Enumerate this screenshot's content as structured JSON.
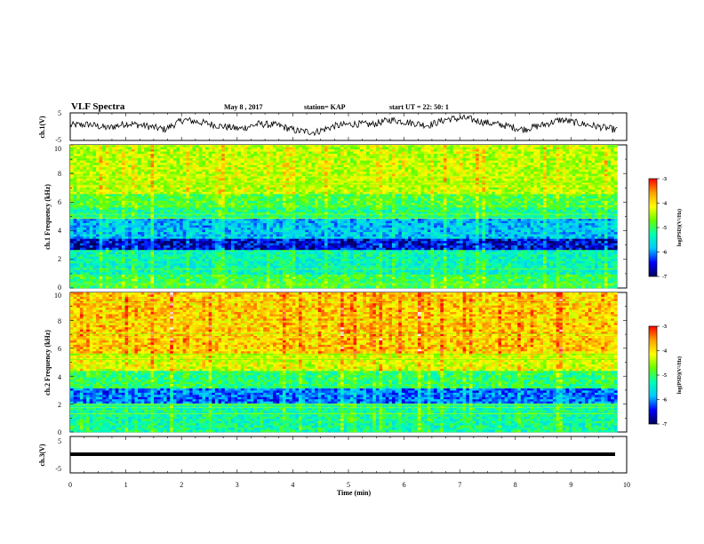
{
  "chart_data": [
    {
      "type": "line",
      "title": "VLF Spectra",
      "date": "May 8 , 2017",
      "station": "station= KAP",
      "start": "start UT = 22: 50: 1",
      "ylabel": "ch.1(V)",
      "yticks": [
        "5",
        "-5"
      ],
      "ylim": [
        -5,
        5
      ],
      "xlim": [
        0,
        9.83
      ],
      "series": [
        {
          "values_sample": [
            0.5,
            0.8,
            -0.5,
            1.2,
            0.3,
            -1.0,
            2.5,
            1.5,
            0.2,
            -0.8,
            1.0,
            0.5,
            -1.5,
            -2.0,
            0.2,
            1.0,
            0.8,
            2.5,
            1.5,
            0.5,
            2.8,
            3.0,
            1.5,
            0.5,
            -1.0,
            0.5,
            2.5,
            1.2,
            0.0,
            -1.2
          ]
        }
      ]
    },
    {
      "type": "heatmap",
      "ylabel": "ch.1  Frequency  (kHz)",
      "yticks": [
        "0",
        "2",
        "4",
        "6",
        "8",
        "10"
      ],
      "ylim": [
        0,
        10
      ],
      "xlim": [
        0,
        9.83
      ],
      "bands_khz": [
        {
          "from": 0.0,
          "to": 1.0,
          "level": -5.0
        },
        {
          "from": 1.0,
          "to": 2.6,
          "level": -5.4
        },
        {
          "from": 2.6,
          "to": 3.4,
          "level": -6.6
        },
        {
          "from": 3.4,
          "to": 4.8,
          "level": -5.9
        },
        {
          "from": 4.8,
          "to": 5.6,
          "level": -5.2
        },
        {
          "from": 5.6,
          "to": 6.6,
          "level": -4.9
        },
        {
          "from": 6.6,
          "to": 10.0,
          "level": -4.4
        }
      ]
    },
    {
      "type": "heatmap",
      "ylabel": "ch.2  Frequency  (kHz)",
      "yticks": [
        "0",
        "2",
        "4",
        "6",
        "8",
        "10"
      ],
      "ylim": [
        0,
        10
      ],
      "xlim": [
        0,
        9.83
      ],
      "bands_khz": [
        {
          "from": 0.0,
          "to": 2.0,
          "level": -5.3
        },
        {
          "from": 2.0,
          "to": 3.2,
          "level": -6.2
        },
        {
          "from": 3.2,
          "to": 4.3,
          "level": -5.1
        },
        {
          "from": 4.3,
          "to": 5.6,
          "level": -4.3
        },
        {
          "from": 5.6,
          "to": 10.0,
          "level": -3.9
        }
      ]
    },
    {
      "type": "line",
      "ylabel": "ch.3(V)",
      "yticks": [
        "5",
        "-5"
      ],
      "ylim": [
        -5,
        5
      ],
      "xlim": [
        0,
        9.83
      ],
      "series": [
        {
          "constant": 0
        }
      ]
    }
  ],
  "xaxis": {
    "label": "Time  (min)",
    "ticks": [
      "0",
      "1",
      "2",
      "3",
      "4",
      "5",
      "6",
      "7",
      "8",
      "9",
      "10"
    ],
    "range": [
      0,
      10
    ]
  },
  "colorbar": {
    "label": "log(PSD)(V²/Hz)",
    "ticks": [
      "-3",
      "-4",
      "-5",
      "-6",
      "-7"
    ],
    "range": [
      -7,
      -3
    ],
    "colors": [
      "#00005a",
      "#0000ff",
      "#00c8ff",
      "#00ffb4",
      "#64ff00",
      "#ffff00",
      "#ffa000",
      "#ff0000",
      "#ffffff"
    ]
  }
}
